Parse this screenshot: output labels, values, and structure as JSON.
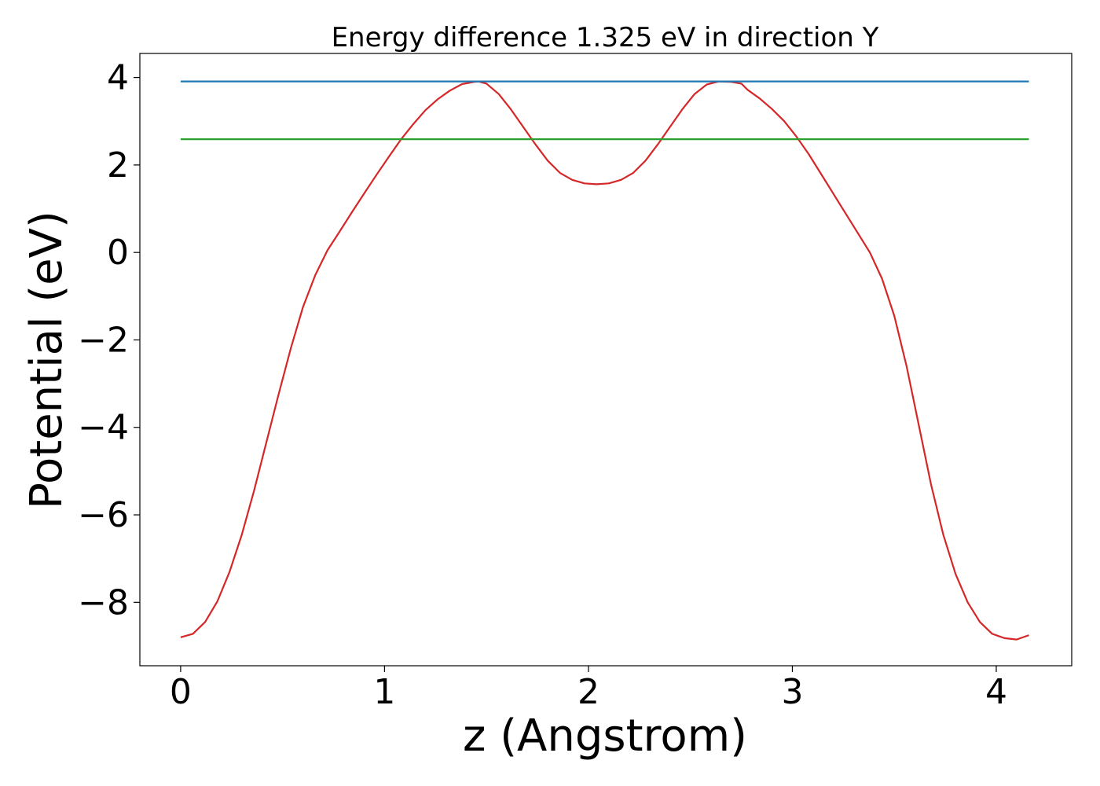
{
  "chart_data": {
    "type": "line",
    "title": "Energy difference 1.325 eV in direction Y",
    "xlabel": "z (Angstrom)",
    "ylabel": "Potential (eV)",
    "xlim": [
      -0.2,
      4.37
    ],
    "ylim": [
      -9.45,
      4.55
    ],
    "xticks": [
      0,
      1,
      2,
      3,
      4
    ],
    "yticks": [
      -8,
      -6,
      -4,
      -2,
      0,
      2,
      4
    ],
    "xtick_labels": [
      "0",
      "1",
      "2",
      "3",
      "4"
    ],
    "ytick_labels": [
      "−8",
      "−6",
      "−4",
      "−2",
      "0",
      "2",
      "4"
    ],
    "grid": false,
    "series": [
      {
        "color": "#d62728",
        "x": [
          0,
          0.06,
          0.12,
          0.18,
          0.24,
          0.3,
          0.36,
          0.42,
          0.48,
          0.54,
          0.6,
          0.66,
          0.72,
          0.78,
          0.84,
          0.9,
          0.96,
          1.02,
          1.08,
          1.14,
          1.2,
          1.26,
          1.32,
          1.38,
          1.44,
          1.46,
          1.5,
          1.56,
          1.62,
          1.68,
          1.74,
          1.8,
          1.86,
          1.92,
          1.98,
          2.04,
          2.1,
          2.16,
          2.22,
          2.28,
          2.34,
          2.4,
          2.46,
          2.52,
          2.58,
          2.64,
          2.7,
          2.75,
          2.78,
          2.84,
          2.9,
          2.96,
          3.02,
          3.08,
          3.14,
          3.2,
          3.26,
          3.32,
          3.38,
          3.44,
          3.5,
          3.56,
          3.62,
          3.68,
          3.74,
          3.8,
          3.86,
          3.92,
          3.98,
          4.04,
          4.1,
          4.16
        ],
        "y": [
          -8.8,
          -8.72,
          -8.45,
          -7.98,
          -7.3,
          -6.45,
          -5.45,
          -4.35,
          -3.25,
          -2.2,
          -1.25,
          -0.52,
          0.05,
          0.48,
          0.92,
          1.35,
          1.77,
          2.18,
          2.58,
          2.93,
          3.25,
          3.5,
          3.7,
          3.85,
          3.9,
          3.91,
          3.86,
          3.62,
          3.27,
          2.87,
          2.47,
          2.1,
          1.82,
          1.66,
          1.58,
          1.56,
          1.58,
          1.66,
          1.82,
          2.1,
          2.47,
          2.87,
          3.27,
          3.62,
          3.84,
          3.91,
          3.9,
          3.86,
          3.72,
          3.52,
          3.28,
          3.0,
          2.65,
          2.25,
          1.8,
          1.35,
          0.9,
          0.45,
          0.0,
          -0.6,
          -1.45,
          -2.6,
          -3.95,
          -5.3,
          -6.45,
          -7.35,
          -8.0,
          -8.45,
          -8.72,
          -8.82,
          -8.85,
          -8.75
        ]
      },
      {
        "color": "#1f77b4",
        "x": [
          0,
          4.16
        ],
        "y": [
          3.91,
          3.91
        ]
      },
      {
        "color": "#2ca02c",
        "x": [
          0,
          4.16
        ],
        "y": [
          2.59,
          2.59
        ]
      }
    ]
  }
}
